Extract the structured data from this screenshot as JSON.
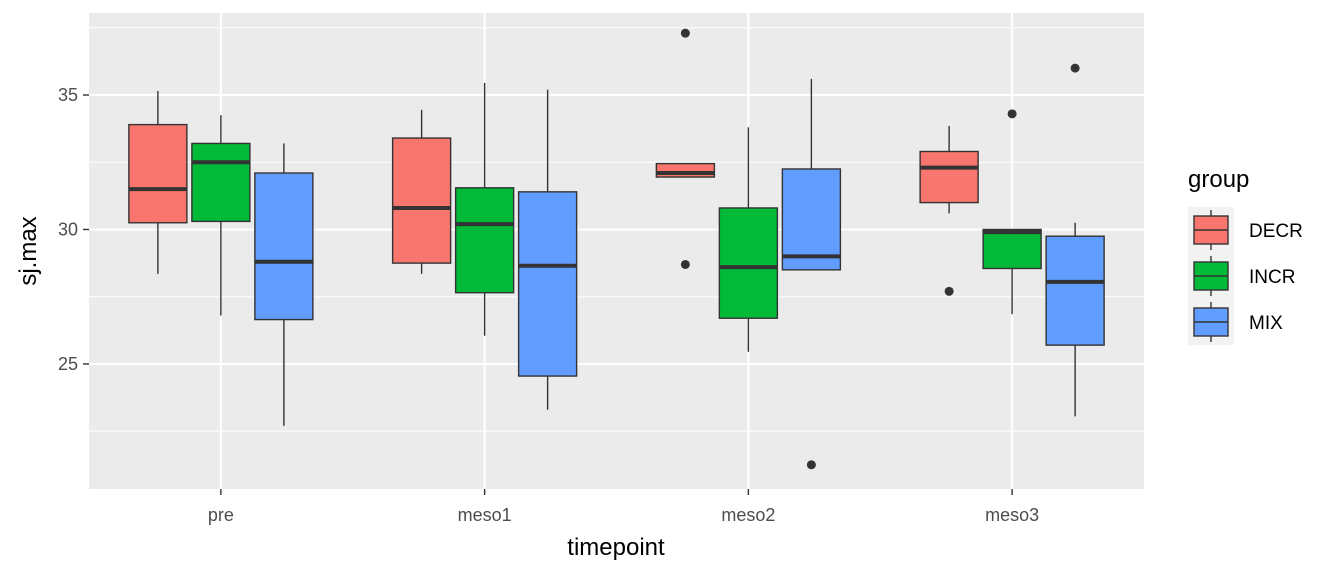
{
  "chart_data": {
    "type": "boxplot",
    "xlabel": "timepoint",
    "ylabel": "sj.max",
    "categories": [
      "pre",
      "meso1",
      "meso2",
      "meso3"
    ],
    "yticks": [
      25,
      30,
      35
    ],
    "ylim": [
      20.35,
      38.05
    ],
    "grid": true,
    "legend": {
      "title": "group",
      "placement": "right"
    },
    "series": [
      {
        "name": "DECR",
        "color": "#F8766D",
        "boxes": [
          {
            "q1": 30.25,
            "median": 31.5,
            "q3": 33.9,
            "whisker_low": 28.35,
            "whisker_high": 35.15,
            "outliers": []
          },
          {
            "q1": 28.75,
            "median": 30.8,
            "q3": 33.4,
            "whisker_low": 28.35,
            "whisker_high": 34.45,
            "outliers": []
          },
          {
            "q1": 31.95,
            "median": 32.1,
            "q3": 32.45,
            "whisker_low": 31.95,
            "whisker_high": 32.45,
            "outliers": [
              37.3,
              28.7
            ]
          },
          {
            "q1": 31.0,
            "median": 32.3,
            "q3": 32.9,
            "whisker_low": 30.6,
            "whisker_high": 33.85,
            "outliers": [
              27.7
            ]
          }
        ]
      },
      {
        "name": "INCR",
        "color": "#00BA38",
        "boxes": [
          {
            "q1": 30.3,
            "median": 32.5,
            "q3": 33.2,
            "whisker_low": 26.8,
            "whisker_high": 34.25,
            "outliers": []
          },
          {
            "q1": 27.65,
            "median": 30.2,
            "q3": 31.55,
            "whisker_low": 26.05,
            "whisker_high": 35.45,
            "outliers": []
          },
          {
            "q1": 26.7,
            "median": 28.6,
            "q3": 30.8,
            "whisker_low": 25.45,
            "whisker_high": 33.8,
            "outliers": []
          },
          {
            "q1": 28.55,
            "median": 29.9,
            "q3": 30.0,
            "whisker_low": 26.85,
            "whisker_high": 30.0,
            "outliers": [
              34.3
            ]
          }
        ]
      },
      {
        "name": "MIX",
        "color": "#619CFF",
        "boxes": [
          {
            "q1": 26.65,
            "median": 28.8,
            "q3": 32.1,
            "whisker_low": 22.7,
            "whisker_high": 33.2,
            "outliers": []
          },
          {
            "q1": 24.55,
            "median": 28.65,
            "q3": 31.4,
            "whisker_low": 23.3,
            "whisker_high": 35.2,
            "outliers": []
          },
          {
            "q1": 28.5,
            "median": 29.0,
            "q3": 32.25,
            "whisker_low": 28.5,
            "whisker_high": 35.6,
            "outliers": [
              21.25
            ]
          },
          {
            "q1": 25.7,
            "median": 28.05,
            "q3": 29.75,
            "whisker_low": 23.05,
            "whisker_high": 30.25,
            "outliers": [
              36.0
            ]
          }
        ]
      }
    ]
  }
}
